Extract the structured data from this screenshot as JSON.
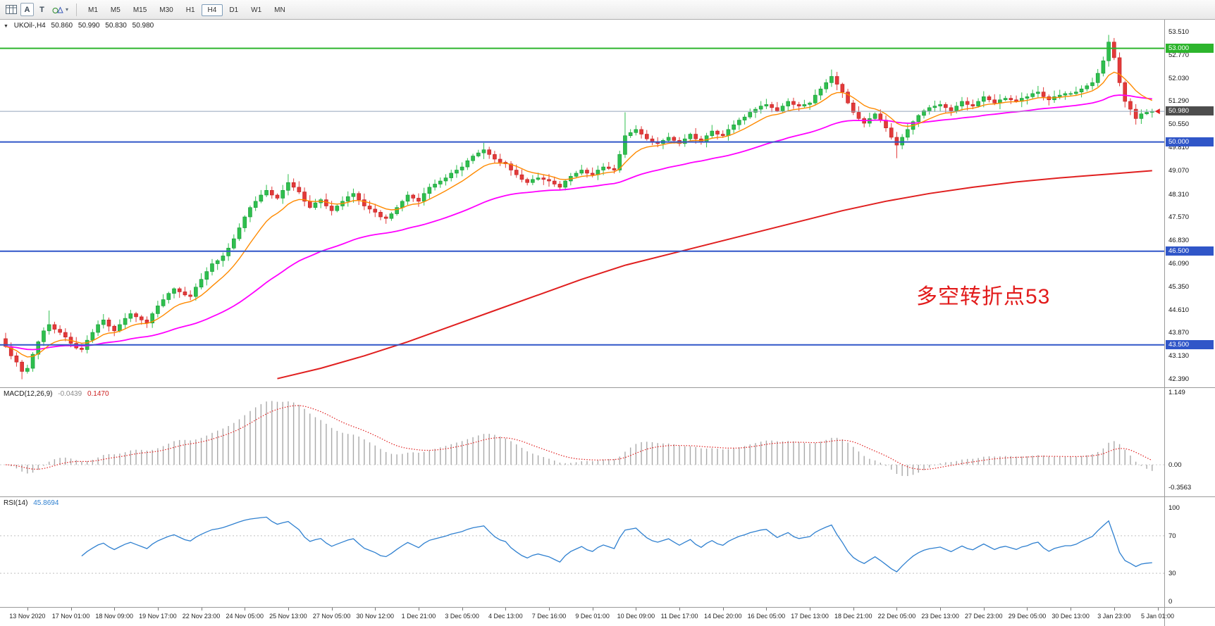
{
  "toolbar": {
    "caret": "▾",
    "tools": [
      {
        "name": "arrow-tool",
        "label": "A"
      },
      {
        "name": "text-tool",
        "label": "T"
      }
    ],
    "timeframes": [
      "M1",
      "M5",
      "M15",
      "M30",
      "H1",
      "H4",
      "D1",
      "W1",
      "MN"
    ],
    "active_timeframe": "H4"
  },
  "chart": {
    "collapse_icon": "▼",
    "symbol_header": {
      "symbol": "UKOil-,H4",
      "open": "50.860",
      "high": "50.990",
      "low": "50.830",
      "close": "50.980"
    },
    "annotation": {
      "text": "多空转折点53",
      "color": "#e21b1b"
    },
    "up_color": "#2fbf4e",
    "up_border": "#159a35",
    "down_color": "#e23a3a",
    "down_border": "#c21f1f",
    "current_price": 50.98,
    "hlines": [
      {
        "value": 53.0,
        "color": "#2db52d",
        "width": 2
      },
      {
        "value": 50.0,
        "color": "#3056c8",
        "width": 2
      },
      {
        "value": 46.5,
        "color": "#3056c8",
        "width": 2
      },
      {
        "value": 43.5,
        "color": "#3056c8",
        "width": 2
      },
      {
        "value": 50.98,
        "color": "#93a5ba",
        "width": 1
      }
    ],
    "price_axis": {
      "ticks": [
        "53.510",
        "52.770",
        "52.030",
        "51.290",
        "50.550",
        "49.810",
        "49.070",
        "48.310",
        "47.570",
        "46.830",
        "46.090",
        "45.350",
        "44.610",
        "43.870",
        "43.130",
        "42.390"
      ],
      "badges": [
        {
          "label": "53.000",
          "value": 53.0,
          "bg": "#2db52d"
        },
        {
          "label": "50.980",
          "value": 50.98,
          "bg": "#4d4d4d"
        },
        {
          "label": "50.000",
          "value": 50.0,
          "bg": "#3056c8"
        },
        {
          "label": "46.500",
          "value": 46.5,
          "bg": "#3056c8"
        },
        {
          "label": "43.500",
          "value": 43.5,
          "bg": "#3056c8"
        }
      ]
    }
  },
  "macd_panel": {
    "name": "MACD(12,26,9)",
    "value_main": "-0.0439",
    "value_signal": "0.1470",
    "ticks": [
      "1.149",
      "0.00",
      "-0.3563"
    ]
  },
  "rsi_panel": {
    "name": "RSI(14)",
    "value": "45.8694",
    "ticks": [
      100,
      70,
      30,
      0
    ],
    "levels": [
      70,
      30
    ]
  },
  "chart_data": {
    "type": "candlestick",
    "title": "UKOil- H4",
    "symbol": "UKOil-",
    "timeframe": "H4",
    "ylim": [
      42.39,
      53.51
    ],
    "open_first": 43.7,
    "closes": [
      43.45,
      43.15,
      42.95,
      42.65,
      42.75,
      43.2,
      43.6,
      43.95,
      44.15,
      44.0,
      43.9,
      43.75,
      43.55,
      43.4,
      43.35,
      43.65,
      43.9,
      44.15,
      44.3,
      44.1,
      43.95,
      44.15,
      44.35,
      44.5,
      44.4,
      44.3,
      44.2,
      44.5,
      44.75,
      44.95,
      45.15,
      45.3,
      45.2,
      45.1,
      45.05,
      45.35,
      45.6,
      45.85,
      46.1,
      46.2,
      46.35,
      46.6,
      46.9,
      47.25,
      47.6,
      47.9,
      48.1,
      48.3,
      48.45,
      48.3,
      48.2,
      48.45,
      48.7,
      48.55,
      48.4,
      48.1,
      47.9,
      48.05,
      48.15,
      47.95,
      47.8,
      47.95,
      48.1,
      48.25,
      48.35,
      48.15,
      47.95,
      47.85,
      47.75,
      47.6,
      47.55,
      47.7,
      47.9,
      48.1,
      48.3,
      48.2,
      48.1,
      48.35,
      48.55,
      48.65,
      48.75,
      48.85,
      49.0,
      49.1,
      49.2,
      49.4,
      49.55,
      49.65,
      49.75,
      49.6,
      49.45,
      49.35,
      49.3,
      49.1,
      48.95,
      48.8,
      48.7,
      48.8,
      48.85,
      48.8,
      48.75,
      48.65,
      48.55,
      48.75,
      48.9,
      49.0,
      49.1,
      49.0,
      48.95,
      49.1,
      49.2,
      49.15,
      49.1,
      49.6,
      50.2,
      50.3,
      50.4,
      50.25,
      50.1,
      50.0,
      49.95,
      50.05,
      50.15,
      50.05,
      49.95,
      50.1,
      50.25,
      50.1,
      50.0,
      50.2,
      50.35,
      50.25,
      50.2,
      50.4,
      50.55,
      50.7,
      50.8,
      50.95,
      51.05,
      51.15,
      51.2,
      51.1,
      51.0,
      51.15,
      51.3,
      51.2,
      51.15,
      51.2,
      51.25,
      51.5,
      51.7,
      51.9,
      52.1,
      51.85,
      51.6,
      51.25,
      50.95,
      50.75,
      50.6,
      50.75,
      50.9,
      50.7,
      50.45,
      50.15,
      49.9,
      50.15,
      50.4,
      50.65,
      50.85,
      51.0,
      51.1,
      51.15,
      51.2,
      51.1,
      51.0,
      51.15,
      51.3,
      51.2,
      51.15,
      51.3,
      51.45,
      51.35,
      51.25,
      51.35,
      51.4,
      51.35,
      51.3,
      51.4,
      51.45,
      51.55,
      51.6,
      51.45,
      51.35,
      51.45,
      51.5,
      51.55,
      51.55,
      51.6,
      51.7,
      51.8,
      51.9,
      52.2,
      52.6,
      53.2,
      52.7,
      51.9,
      51.3,
      51.05,
      50.75,
      50.9,
      50.95,
      50.98
    ],
    "wick_overrides": {
      "3": {
        "low": 42.4
      },
      "8": {
        "high": 44.6
      },
      "52": {
        "high": 48.97
      },
      "88": {
        "high": 49.97
      },
      "114": {
        "high": 50.95
      },
      "152": {
        "high": 52.32
      },
      "164": {
        "low": 49.48
      },
      "203": {
        "high": 53.43
      }
    },
    "ma_fast": {
      "type": "ema",
      "period": 10,
      "color": "#ff8a00"
    },
    "ma_mid": {
      "type": "ema",
      "period": 45,
      "color": "#ff00ff"
    },
    "ma_slow": {
      "color": "#e01f1f",
      "points": [
        [
          50,
          42.42
        ],
        [
          58,
          42.75
        ],
        [
          66,
          43.15
        ],
        [
          74,
          43.6
        ],
        [
          82,
          44.1
        ],
        [
          90,
          44.6
        ],
        [
          98,
          45.1
        ],
        [
          106,
          45.6
        ],
        [
          114,
          46.05
        ],
        [
          122,
          46.4
        ],
        [
          130,
          46.75
        ],
        [
          138,
          47.1
        ],
        [
          146,
          47.45
        ],
        [
          154,
          47.8
        ],
        [
          162,
          48.1
        ],
        [
          170,
          48.35
        ],
        [
          178,
          48.55
        ],
        [
          186,
          48.72
        ],
        [
          194,
          48.85
        ],
        [
          203,
          48.97
        ],
        [
          211,
          49.08
        ]
      ]
    },
    "macd": {
      "fast": 12,
      "slow": 26,
      "signal": 9
    },
    "rsi": {
      "period": 14
    },
    "x_labels": [
      "13 Nov 2020",
      "17 Nov 01:00",
      "18 Nov 09:00",
      "19 Nov 17:00",
      "22 Nov 23:00",
      "24 Nov 05:00",
      "25 Nov 13:00",
      "27 Nov 05:00",
      "30 Nov 12:00",
      "1 Dec 21:00",
      "3 Dec 05:00",
      "4 Dec 13:00",
      "7 Dec 16:00",
      "9 Dec 01:00",
      "10 Dec 09:00",
      "11 Dec 17:00",
      "14 Dec 20:00",
      "16 Dec 05:00",
      "17 Dec 13:00",
      "18 Dec 21:00",
      "22 Dec 05:00",
      "23 Dec 13:00",
      "27 Dec 23:00",
      "29 Dec 05:00",
      "30 Dec 13:00",
      "3 Jan 23:00",
      "5 Jan 01:00"
    ],
    "x_label_first_candle": 4,
    "x_label_candle_step": 8,
    "current_price": 50.98
  }
}
